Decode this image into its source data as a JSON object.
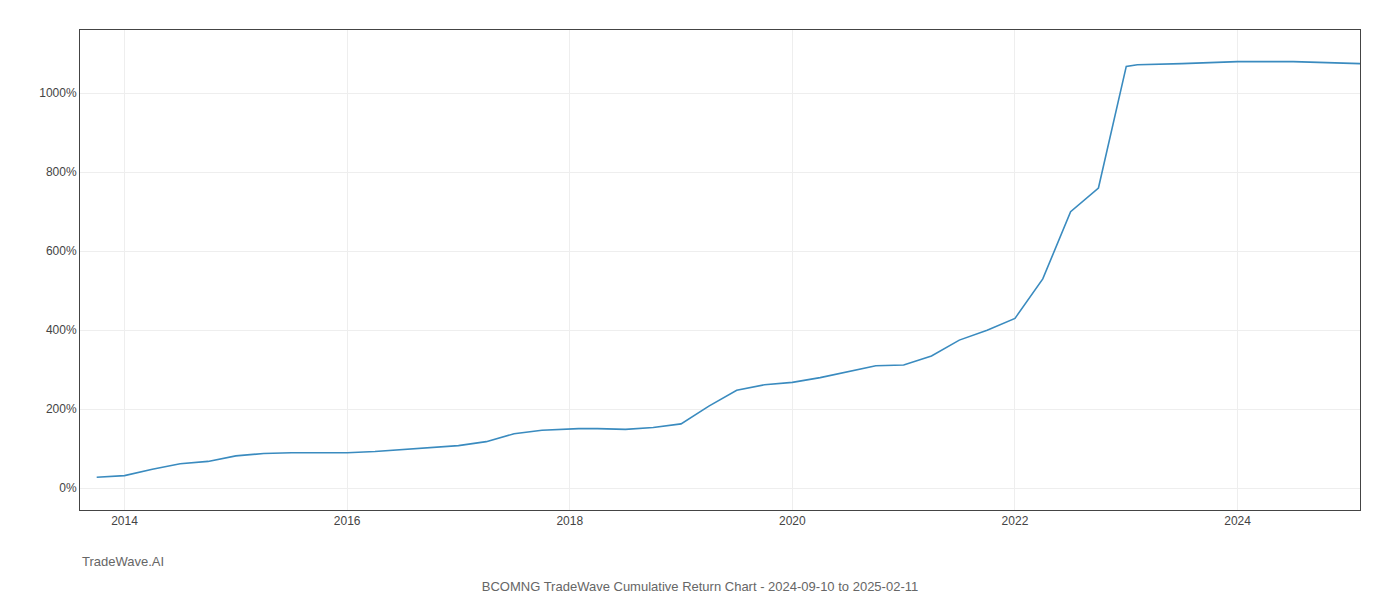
{
  "chart_data": {
    "type": "line",
    "title": "BCOMNG TradeWave Cumulative Return Chart - 2024-09-10 to 2025-02-11",
    "annotations": [
      "TradeWave.AI"
    ],
    "color": "#3a8bbf",
    "grid": true,
    "xlim": [
      2013.6,
      2025.1
    ],
    "ylim": [
      -55,
      1160
    ],
    "xticks": [
      2014,
      2016,
      2018,
      2020,
      2022,
      2024
    ],
    "yticks": [
      {
        "value": 0,
        "label": "0%"
      },
      {
        "value": 200,
        "label": "200%"
      },
      {
        "value": 400,
        "label": "400%"
      },
      {
        "value": 600,
        "label": "600%"
      },
      {
        "value": 800,
        "label": "800%"
      },
      {
        "value": 1000,
        "label": "1000%"
      }
    ],
    "x": [
      2013.75,
      2014.0,
      2014.25,
      2014.5,
      2014.75,
      2015.0,
      2015.25,
      2015.5,
      2015.75,
      2016.0,
      2016.25,
      2016.5,
      2016.75,
      2017.0,
      2017.25,
      2017.5,
      2017.75,
      2018.0,
      2018.08,
      2018.25,
      2018.5,
      2018.75,
      2019.0,
      2019.25,
      2019.5,
      2019.75,
      2020.0,
      2020.25,
      2020.5,
      2020.75,
      2021.0,
      2021.25,
      2021.5,
      2021.75,
      2022.0,
      2022.25,
      2022.5,
      2022.75,
      2023.0,
      2023.1,
      2023.5,
      2023.75,
      2024.0,
      2024.5,
      2024.83,
      2025.1
    ],
    "values": [
      28,
      32,
      48,
      62,
      68,
      82,
      88,
      90,
      90,
      90,
      93,
      98,
      103,
      108,
      118,
      138,
      147,
      150,
      151,
      151,
      149,
      154,
      163,
      208,
      248,
      262,
      268,
      280,
      295,
      310,
      312,
      335,
      375,
      400,
      430,
      530,
      700,
      760,
      1068,
      1072,
      1075,
      1078,
      1080,
      1080,
      1078,
      1075
    ]
  }
}
